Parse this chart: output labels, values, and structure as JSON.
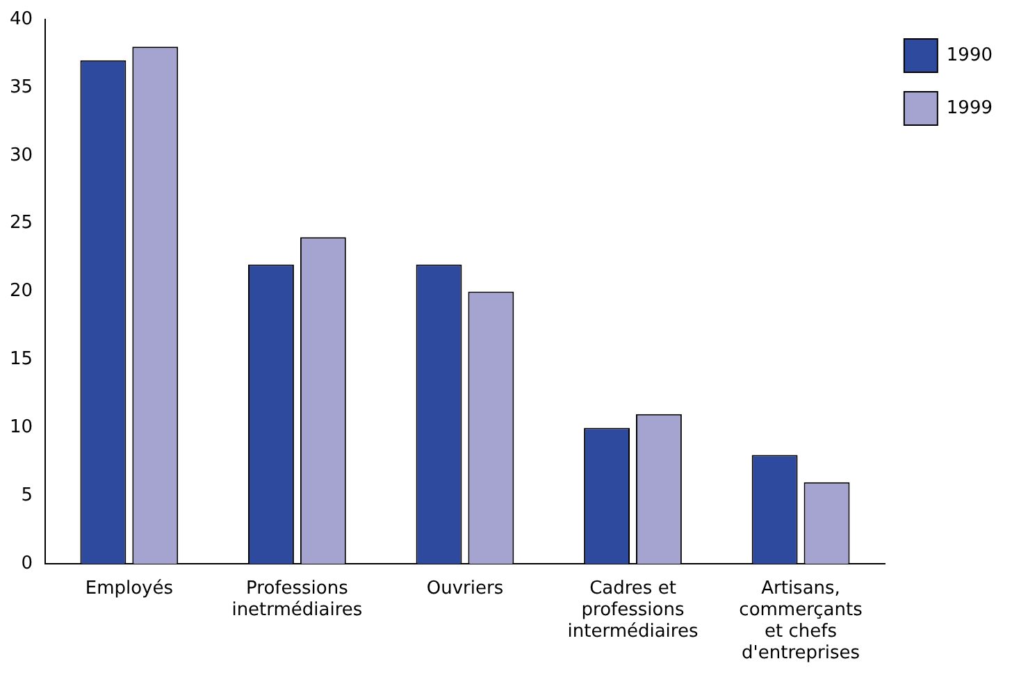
{
  "chart_data": {
    "type": "bar",
    "categories": [
      "Employés",
      "Professions\ninetrmédiaires",
      "Ouvriers",
      "Cadres et\nprofessions\nintermédiaires",
      "Artisans,\ncommerçants\net chefs\nd'entreprises"
    ],
    "series": [
      {
        "name": "1990",
        "color": "#2e4a9e",
        "values": [
          37,
          22,
          22,
          10,
          8
        ]
      },
      {
        "name": "1999",
        "color": "#a5a3d0",
        "values": [
          38,
          24,
          20,
          11,
          6
        ]
      }
    ],
    "ylim": [
      0,
      40
    ],
    "yticks": [
      0,
      5,
      10,
      15,
      20,
      25,
      30,
      35,
      40
    ],
    "grid": false,
    "legend": "top right"
  }
}
